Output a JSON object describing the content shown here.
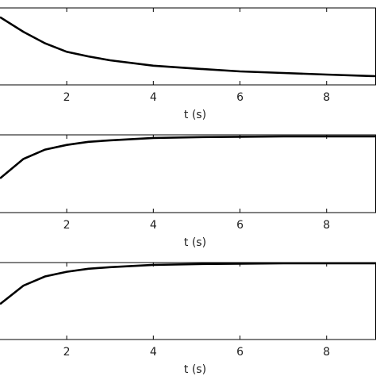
{
  "chart_data": [
    {
      "type": "line",
      "xlabel": "t (s)",
      "xlim": [
        0.46,
        9.14
      ],
      "xticks": [
        2,
        4,
        6,
        8
      ],
      "ylim": [
        0,
        1
      ],
      "color": "#000000",
      "x": [
        0.46,
        1,
        1.5,
        2,
        2.5,
        3,
        4,
        5,
        6,
        7,
        8,
        9,
        9.14
      ],
      "values": [
        0.88,
        0.69,
        0.54,
        0.43,
        0.37,
        0.32,
        0.25,
        0.21,
        0.175,
        0.155,
        0.134,
        0.115,
        0.113
      ]
    },
    {
      "type": "line",
      "xlabel": "t (s)",
      "xlim": [
        0.46,
        9.14
      ],
      "xticks": [
        2,
        4,
        6,
        8
      ],
      "ylim": [
        0,
        1
      ],
      "color": "#000000",
      "x": [
        0.46,
        1,
        1.5,
        2,
        2.5,
        3,
        4,
        5,
        6,
        7,
        8,
        9,
        9.14
      ],
      "values": [
        0.44,
        0.69,
        0.81,
        0.87,
        0.91,
        0.93,
        0.96,
        0.97,
        0.975,
        0.98,
        0.98,
        0.98,
        0.98
      ]
    },
    {
      "type": "line",
      "xlabel": "t (s)",
      "xlim": [
        0.46,
        9.14
      ],
      "xticks": [
        2,
        4,
        6,
        8
      ],
      "ylim": [
        0,
        1
      ],
      "color": "#000000",
      "x": [
        0.46,
        1,
        1.5,
        2,
        2.5,
        3,
        4,
        5,
        6,
        7,
        8,
        9,
        9.14
      ],
      "values": [
        0.46,
        0.7,
        0.82,
        0.88,
        0.92,
        0.94,
        0.97,
        0.98,
        0.985,
        0.99,
        0.99,
        0.99,
        0.99
      ]
    }
  ]
}
